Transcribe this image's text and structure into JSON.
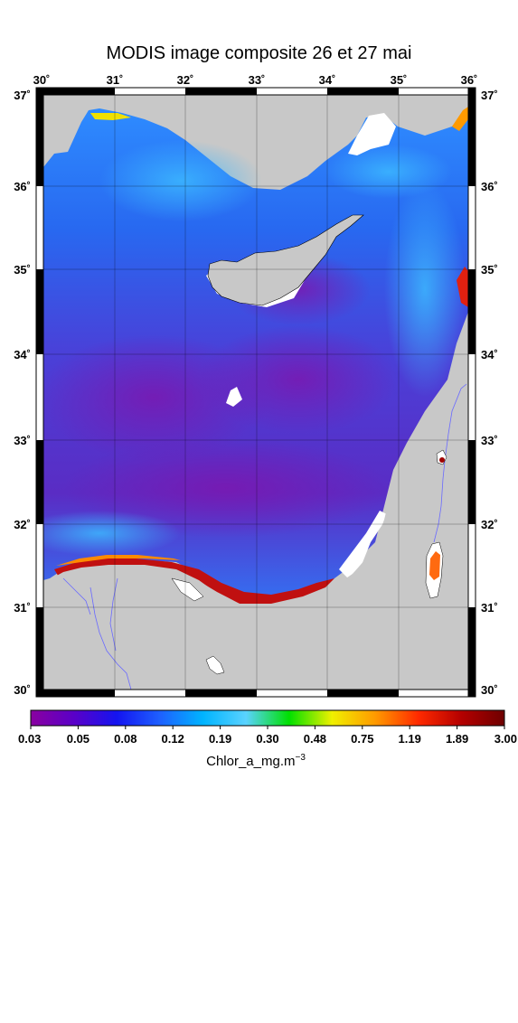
{
  "title": "MODIS image composite 26 et 27 mai",
  "map": {
    "lon_labels": [
      "30˚",
      "31˚",
      "32˚",
      "33˚",
      "34˚",
      "35˚",
      "36˚"
    ],
    "lat_labels": [
      "37˚",
      "36˚",
      "35˚",
      "34˚",
      "33˚",
      "32˚",
      "31˚",
      "30˚"
    ],
    "colors": {
      "land": "#c8c8c8",
      "nodata": "#ffffff",
      "sea_low": "#7a1fb0",
      "sea_mid": "#2f5ff0",
      "sea_high": "#2e9cff",
      "coastal_high": "#c01010"
    }
  },
  "colorbar": {
    "tick_labels": [
      "0.03",
      "0.05",
      "0.08",
      "0.12",
      "0.19",
      "0.30",
      "0.48",
      "0.75",
      "1.19",
      "1.89",
      "3.00"
    ],
    "unit_label": "Chlor_a_mg.m",
    "unit_exponent": "−3",
    "gradient": [
      "#8a00a0",
      "#5a00c8",
      "#1414f0",
      "#1e60ff",
      "#00b4ff",
      "#5ad2ff",
      "#00e000",
      "#f0f000",
      "#ff9a00",
      "#ff2a00",
      "#b40000",
      "#6e0000"
    ]
  }
}
